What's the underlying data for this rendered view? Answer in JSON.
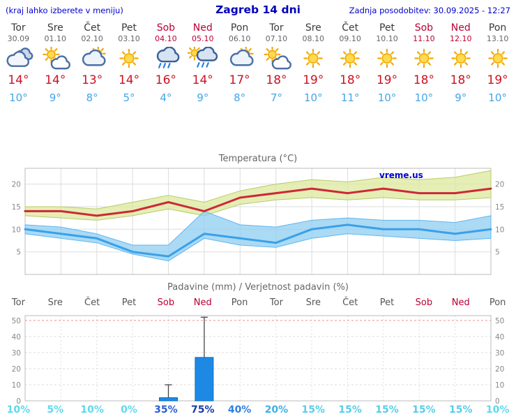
{
  "header": {
    "hint": "(kraj lahko izberete v meniju)",
    "title": "Zagreb 14 dni",
    "updated": "Zadnja posodobitev: 30.09.2025 - 12:27"
  },
  "colors": {
    "link_blue": "#0000cc",
    "weekday": "#3a3a3a",
    "weekday_date": "#666666",
    "weekend": "#bb0033",
    "tmax": "#cc1122",
    "tmin": "#44a6e8"
  },
  "days": [
    {
      "name": "Tor",
      "date": "30.09",
      "weekend": false,
      "icon": "cloudy",
      "tmax": "14°",
      "tmin": "10°"
    },
    {
      "name": "Sre",
      "date": "01.10",
      "weekend": false,
      "icon": "partly",
      "tmax": "14°",
      "tmin": "9°"
    },
    {
      "name": "Čet",
      "date": "02.10",
      "weekend": false,
      "icon": "cloudy-sun",
      "tmax": "13°",
      "tmin": "8°"
    },
    {
      "name": "Pet",
      "date": "03.10",
      "weekend": false,
      "icon": "sunny",
      "tmax": "14°",
      "tmin": "5°"
    },
    {
      "name": "Sob",
      "date": "04.10",
      "weekend": true,
      "icon": "rain",
      "tmax": "16°",
      "tmin": "4°"
    },
    {
      "name": "Ned",
      "date": "05.10",
      "weekend": true,
      "icon": "rain-sun",
      "tmax": "14°",
      "tmin": "9°"
    },
    {
      "name": "Pon",
      "date": "06.10",
      "weekend": false,
      "icon": "cloudy-sun",
      "tmax": "17°",
      "tmin": "8°"
    },
    {
      "name": "Tor",
      "date": "07.10",
      "weekend": false,
      "icon": "partly",
      "tmax": "18°",
      "tmin": "7°"
    },
    {
      "name": "Sre",
      "date": "08.10",
      "weekend": false,
      "icon": "sunny",
      "tmax": "19°",
      "tmin": "10°"
    },
    {
      "name": "Čet",
      "date": "09.10",
      "weekend": false,
      "icon": "sunny",
      "tmax": "18°",
      "tmin": "11°"
    },
    {
      "name": "Pet",
      "date": "10.10",
      "weekend": false,
      "icon": "sunny",
      "tmax": "19°",
      "tmin": "10°"
    },
    {
      "name": "Sob",
      "date": "11.10",
      "weekend": true,
      "icon": "sunny",
      "tmax": "18°",
      "tmin": "10°"
    },
    {
      "name": "Ned",
      "date": "12.10",
      "weekend": true,
      "icon": "sunny",
      "tmax": "18°",
      "tmin": "9°"
    },
    {
      "name": "Pon",
      "date": "13.10",
      "weekend": false,
      "icon": "sunny",
      "tmax": "19°",
      "tmin": "10°"
    }
  ],
  "chart_data": [
    {
      "type": "line",
      "title": "Temperatura (°C)",
      "watermark": "vreme.us",
      "x_labels": [
        "Tor",
        "Sre",
        "Čet",
        "Pet",
        "Sob",
        "Ned",
        "Pon",
        "Tor",
        "Sre",
        "Čet",
        "Pet",
        "Sob",
        "Ned",
        "Pon"
      ],
      "ylim": [
        0,
        23.5
      ],
      "yticks": [
        5,
        10,
        15,
        20
      ],
      "grid": true,
      "legend": "none",
      "series": [
        {
          "name": "max temperature",
          "color": "#cc2936",
          "width": 3,
          "values": [
            14,
            14,
            13,
            14,
            16,
            14,
            17,
            18,
            19,
            18,
            19,
            18,
            18,
            19
          ]
        },
        {
          "name": "min temperature",
          "color": "#3aa0e8",
          "width": 3,
          "values": [
            10,
            9,
            8,
            5,
            4,
            9,
            8,
            7,
            10,
            11,
            10,
            10,
            9,
            10
          ]
        }
      ],
      "bands": [
        {
          "name": "max range",
          "fill": "#dce89c",
          "edge": "#b7cc66",
          "upper": [
            15,
            15,
            14.5,
            16,
            17.5,
            16,
            18.5,
            20,
            21,
            20.5,
            21.5,
            21,
            21.5,
            23
          ],
          "lower": [
            13,
            12.5,
            12,
            13,
            14.5,
            13,
            15.5,
            16.5,
            17,
            16.5,
            17,
            16.5,
            16.5,
            17
          ]
        },
        {
          "name": "min range",
          "fill": "#8fcdf2",
          "edge": "#5fb6ee",
          "upper": [
            11,
            10.5,
            9,
            6.5,
            6.5,
            14,
            11,
            10.5,
            12,
            12.5,
            12,
            12,
            11.5,
            13
          ],
          "lower": [
            9,
            8,
            7,
            4.5,
            3,
            8,
            6.5,
            6,
            8,
            9,
            8.5,
            8,
            7.5,
            8
          ]
        }
      ]
    },
    {
      "type": "bar",
      "title": "Padavine (mm) / Verjetnost padavin (%)",
      "x_labels": [
        "Tor",
        "Sre",
        "Čet",
        "Pet",
        "Sob",
        "Ned",
        "Pon",
        "Tor",
        "Sre",
        "Čet",
        "Pet",
        "Sob",
        "Ned",
        "Pon"
      ],
      "weekend_flags": [
        false,
        false,
        false,
        false,
        true,
        true,
        false,
        false,
        false,
        false,
        false,
        true,
        true,
        false
      ],
      "ylim": [
        0,
        53
      ],
      "yticks": [
        0,
        10,
        20,
        30,
        40,
        50
      ],
      "bar_color": "#1e88e5",
      "bar_edge": "#0d6fc0",
      "values": [
        0,
        0,
        0,
        0,
        2,
        27,
        0,
        0,
        0,
        0,
        0,
        0,
        0,
        0
      ],
      "whiskers": [
        0,
        0,
        0,
        0,
        10,
        52,
        0,
        0,
        0,
        0,
        0,
        0,
        0,
        0
      ],
      "probabilities": [
        {
          "label": "10%",
          "color": "#5fd9ec"
        },
        {
          "label": "5%",
          "color": "#5fd9ec"
        },
        {
          "label": "10%",
          "color": "#5fd9ec"
        },
        {
          "label": "0%",
          "color": "#5fd9ec"
        },
        {
          "label": "35%",
          "color": "#2a5fd0"
        },
        {
          "label": "75%",
          "color": "#1a3aa8"
        },
        {
          "label": "40%",
          "color": "#2f7fe0"
        },
        {
          "label": "20%",
          "color": "#3fb0e6"
        },
        {
          "label": "15%",
          "color": "#57cdea"
        },
        {
          "label": "15%",
          "color": "#57cdea"
        },
        {
          "label": "15%",
          "color": "#57cdea"
        },
        {
          "label": "15%",
          "color": "#57cdea"
        },
        {
          "label": "15%",
          "color": "#57cdea"
        },
        {
          "label": "10%",
          "color": "#5fd9ec"
        }
      ]
    }
  ]
}
